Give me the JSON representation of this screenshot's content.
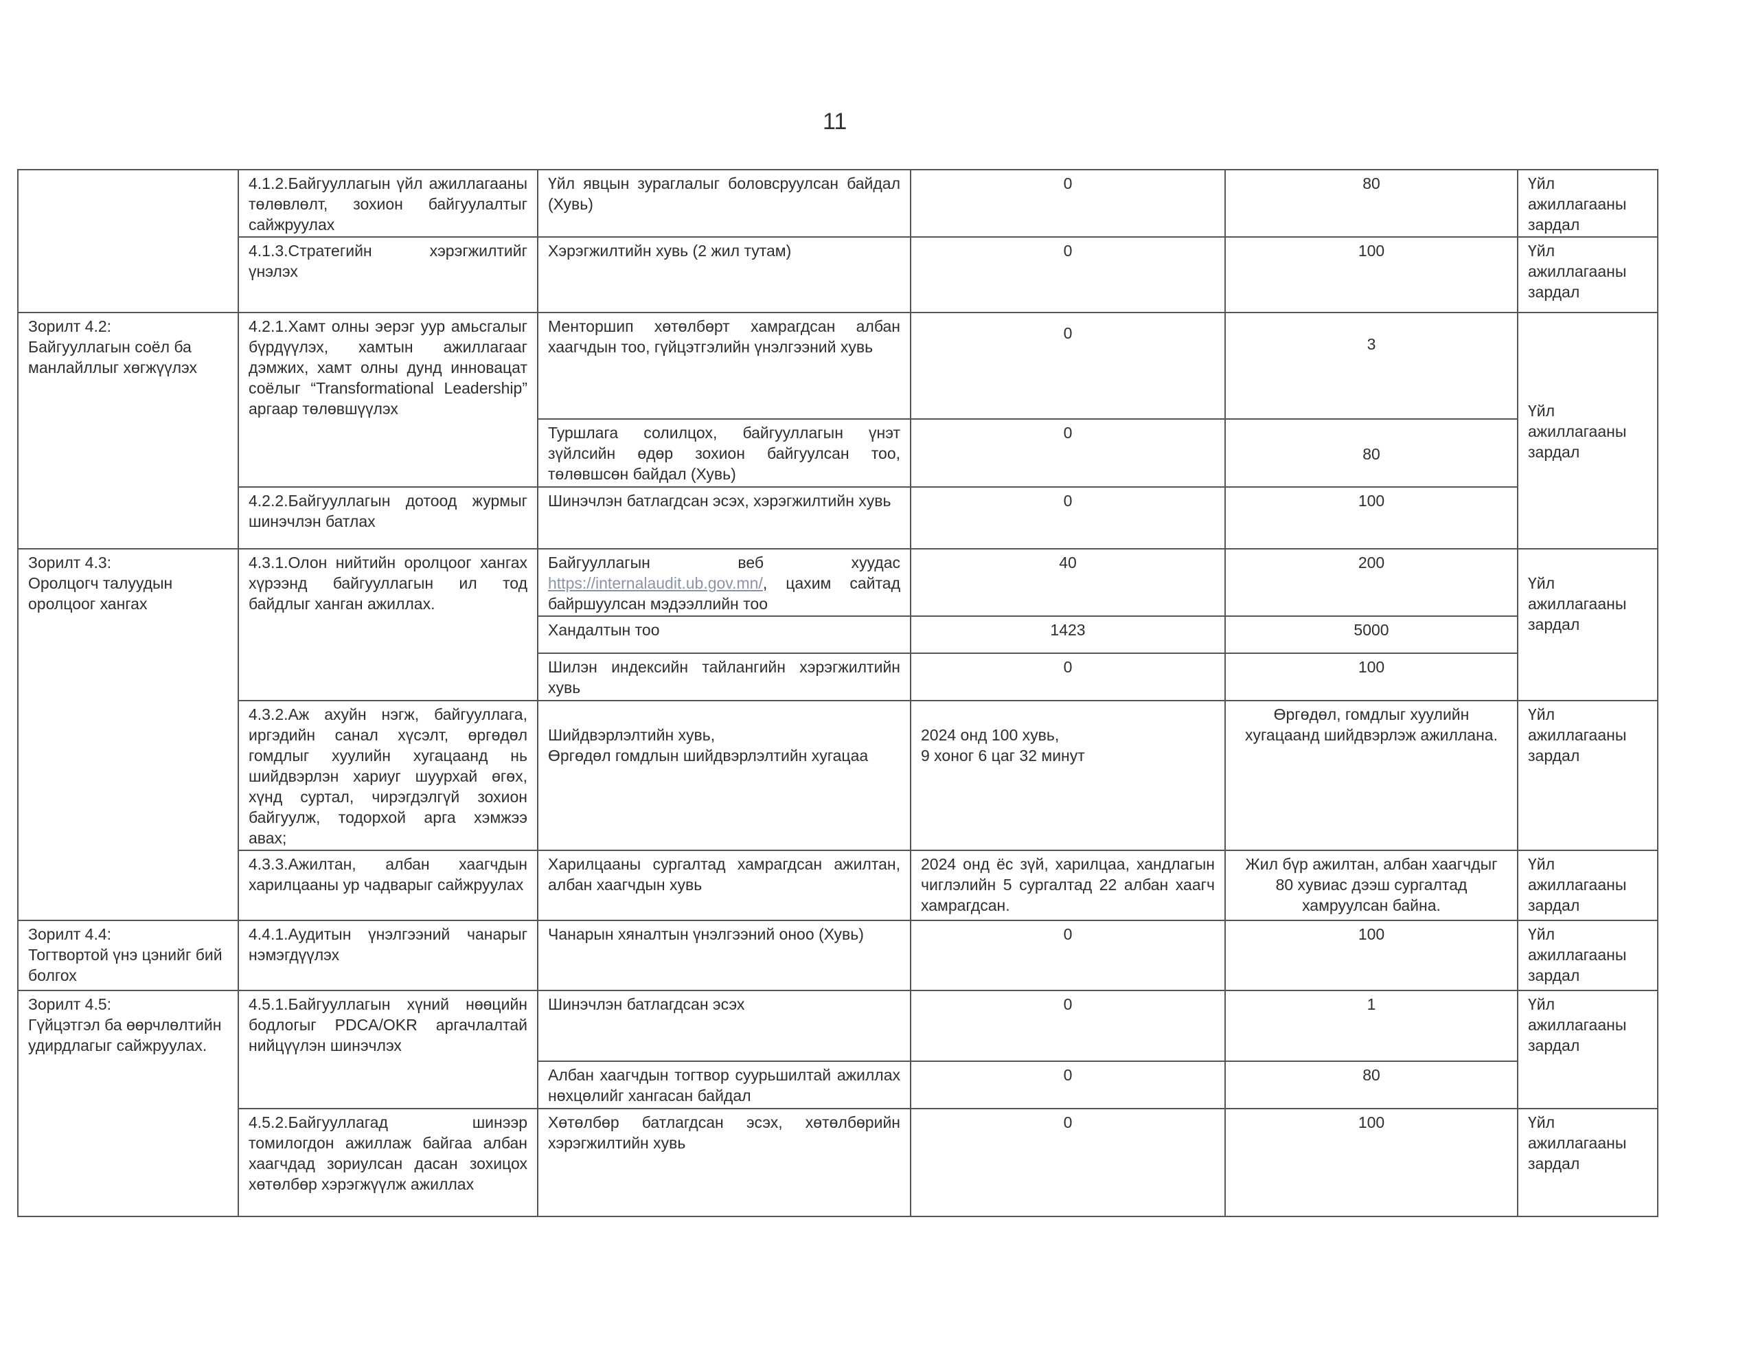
{
  "page_number": "11",
  "funding": "Үйл ажиллагааны зардал",
  "rows": {
    "r412": {
      "action": "4.1.2.Байгууллагын үйл ажиллагааны төлөвлөлт, зохион байгуулалтыг сайжруулах",
      "indicator": "Үйл явцын зураглалыг боловсруулсан байдал (Хувь)",
      "baseline": "0",
      "target": "80"
    },
    "r413": {
      "action": "4.1.3.Стратегийн хэрэгжилтийг үнэлэх",
      "indicator": "Хэрэгжилтийн хувь (2 жил тутам)",
      "baseline": "0",
      "target": "100"
    },
    "g42": {
      "goal": "Зорилт 4.2:\nБайгууллагын соёл ба манлайллыг хөгжүүлэх"
    },
    "r421a": {
      "action": "4.2.1.Хамт олны эерэг уур амьсгалыг бүрдүүлэх, хамтын ажиллагааг дэмжих, хамт олны дунд инновацат соёлыг “Transformational Leadership” аргаар төлөвшүүлэх",
      "indicator": "Менторшип хөтөлбөрт хамрагдсан албан хаагчдын тоо, гүйцэтгэлийн үнэлгээний хувь",
      "baseline": "0",
      "target": "3"
    },
    "r421b": {
      "indicator": "Туршлага солилцох, байгууллагын үнэт зүйлсийн өдөр зохион байгуулсан тоо, төлөвшсөн байдал (Хувь)",
      "baseline": "0",
      "target": "80"
    },
    "r422": {
      "action": "4.2.2.Байгууллагын дотоод журмыг шинэчлэн батлах",
      "indicator": "Шинэчлэн батлагдсан эсэх, хэрэгжилтийн хувь",
      "baseline": "0",
      "target": "100"
    },
    "g43": {
      "goal": "Зорилт 4.3:\nОролцогч талуудын оролцоог хангах"
    },
    "r431a": {
      "action": "4.3.1.Олон нийтийн оролцоог хангах хүрээнд байгууллагын ил тод байдлыг ханган ажиллах.",
      "indicator_pre": "Байгууллагын веб хуудас",
      "indicator_link": "https://internalaudit.ub.gov.mn/",
      "indicator_post": ", цахим сайтад байршуулсан мэдээллийн тоо",
      "baseline": "40",
      "target": "200"
    },
    "r431b": {
      "indicator": "Хандалтын тоо",
      "baseline": "1423",
      "target": "5000"
    },
    "r431c": {
      "indicator": "Шилэн индексийн тайлангийн хэрэгжилтийн хувь",
      "baseline": "0",
      "target": "100"
    },
    "r432": {
      "action": "4.3.2.Аж ахуйн нэгж, байгууллага, иргэдийн санал хүсэлт, өргөдөл гомдлыг хуулийн хугацаанд нь шийдвэрлэн хариуг шуурхай өгөх, хүнд суртал, чирэгдэлгүй зохион байгуулж, тодорхой арга хэмжээ авах;",
      "indicator": "Шийдвэрлэлтийн хувь,\nӨргөдөл гомдлын шийдвэрлэлтийн хугацаа",
      "baseline": "2024 онд 100 хувь,\n9 хоног 6 цаг 32 минут",
      "target": "Өргөдөл, гомдлыг хуулийн хугацаанд шийдвэрлэж ажиллана."
    },
    "r433": {
      "action": "4.3.3.Ажилтан, албан хаагчдын харилцааны ур чадварыг сайжруулах",
      "indicator": "Харилцааны сургалтад хамрагдсан ажилтан, албан хаагчдын хувь",
      "baseline": "2024 онд ёс зүй, харилцаа, хандлагын чиглэлийн 5 сургалтад 22 албан хаагч хамрагдсан.",
      "target": "Жил бүр ажилтан, албан хаагчдыг 80 хувиас дээш сургалтад хамруулсан байна."
    },
    "r441": {
      "goal": "Зорилт 4.4:\nТогтвортой үнэ цэнийг бий болгох",
      "action": "4.4.1.Аудитын үнэлгээний чанарыг нэмэгдүүлэх",
      "indicator": "Чанарын хяналтын үнэлгээний оноо (Хувь)",
      "baseline": "0",
      "target": "100"
    },
    "g45": {
      "goal": "Зорилт 4.5:\nГүйцэтгэл ба өөрчлөлтийн удирдлагыг сайжруулах."
    },
    "r451a": {
      "action": "4.5.1.Байгууллагын хүний нөөцийн бодлогыг PDCA/OKR аргачлалтай нийцүүлэн шинэчлэх",
      "indicator": "Шинэчлэн батлагдсан эсэх",
      "baseline": "0",
      "target": "1"
    },
    "r451b": {
      "indicator": "Албан хаагчдын тогтвор суурьшилтай ажиллах нөхцөлийг хангасан байдал",
      "baseline": "0",
      "target": "80"
    },
    "r452": {
      "action": "4.5.2.Байгууллагад шинээр томилогдон ажиллаж байгаа албан хаагчдад зориулсан дасан зохицох хөтөлбөр хэрэгжүүлж ажиллах",
      "indicator": "Хөтөлбөр батлагдсан эсэх, хөтөлбөрийн хэрэгжилтийн хувь",
      "baseline": "0",
      "target": "100"
    }
  }
}
